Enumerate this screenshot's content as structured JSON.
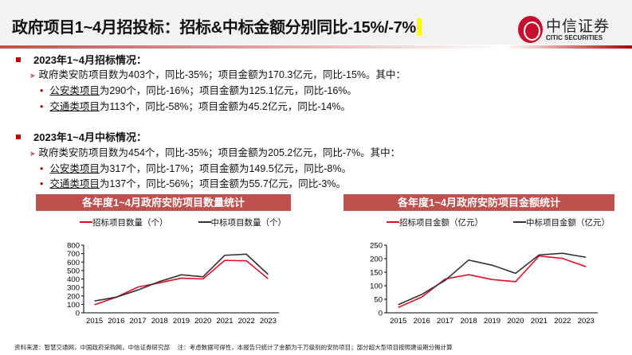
{
  "header": {
    "title": "政府项目1~4月招投标：招标&中标金额分别同比-15%/-7%",
    "logo_cn": "中信证券",
    "logo_en": "CITIC SECURITIES"
  },
  "sections": [
    {
      "heading": "2023年1~4月招标情况：",
      "summary": "政府类安防项目数为403个，同比-35%；项目金额为170.3亿元，同比-15%。其中：",
      "items": [
        {
          "cat": "公安类项目",
          "text": "为290个，同比-16%；项目金额为125.1亿元，同比-16%。"
        },
        {
          "cat": "交通类项目",
          "text": "为113个，同比-58%；项目金额为45.2亿元，同比-14%。"
        }
      ]
    },
    {
      "heading": "2023年1~4月中标情况：",
      "summary": "政府类安防项目数为454个，同比-35%；项目金额为205.2亿元，同比-7%。其中：",
      "items": [
        {
          "cat": "公安类项目",
          "text": "为317个，同比-17%；项目金额为149.5亿元，同比-8%。"
        },
        {
          "cat": "交通类项目",
          "text": "为137个，同比-56%；项目金额为55.7亿元，同比-3%。"
        }
      ]
    }
  ],
  "chart_data": [
    {
      "type": "line",
      "title": "各年度1~4月政府安防项目数量统计",
      "categories": [
        "2015",
        "2016",
        "2017",
        "2018",
        "2019",
        "2020",
        "2021",
        "2022",
        "2023"
      ],
      "ylim": [
        0,
        800
      ],
      "yticks": [
        0,
        100,
        200,
        300,
        400,
        500,
        600,
        700,
        800
      ],
      "legend": "top",
      "grid": false,
      "series": [
        {
          "name": "招标项目数量（个）",
          "color": "#e0102a",
          "values": [
            95,
            185,
            305,
            355,
            410,
            400,
            620,
            615,
            403
          ]
        },
        {
          "name": "中标项目数量（个）",
          "color": "#333333",
          "values": [
            140,
            185,
            270,
            370,
            450,
            425,
            680,
            693,
            454
          ]
        }
      ]
    },
    {
      "type": "line",
      "title": "各年度1~4月政府安防项目金额统计",
      "categories": [
        "2015",
        "2016",
        "2017",
        "2018",
        "2019",
        "2020",
        "2021",
        "2022",
        "2023"
      ],
      "ylim": [
        0,
        250
      ],
      "yticks": [
        0,
        50,
        100,
        150,
        200,
        250
      ],
      "legend": "top",
      "grid": false,
      "series": [
        {
          "name": "招标项目金额（亿元）",
          "color": "#e0102a",
          "values": [
            20,
            58,
            125,
            141,
            123,
            115,
            210,
            201,
            170.3
          ]
        },
        {
          "name": "中标项目金额（亿元）",
          "color": "#333333",
          "values": [
            30,
            68,
            120,
            195,
            176,
            146,
            214,
            220,
            205.2
          ]
        }
      ]
    }
  ],
  "footer": "资料来源：智慧交通网，中国政府采购网，中信证券研究部　 注：考虑数据可得性，本报告只统计了金额为千万级别的安防项目；部分超大型项目按照建设期分摊计算"
}
